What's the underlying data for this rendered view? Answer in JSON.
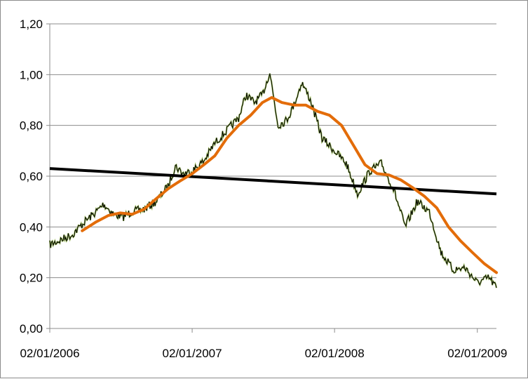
{
  "chart_data": {
    "type": "line",
    "title": "",
    "xlabel": "",
    "ylabel": "",
    "ylim": [
      0,
      1.2
    ],
    "xlim": [
      "2006-01-02",
      "2009-02-20"
    ],
    "grid": "horizontal",
    "legend": "none",
    "y_ticks": [
      "0,00",
      "0,20",
      "0,40",
      "0,60",
      "0,80",
      "1,00",
      "1,20"
    ],
    "y_tick_values": [
      0,
      0.2,
      0.4,
      0.6,
      0.8,
      1.0,
      1.2
    ],
    "x_ticks": [
      "02/01/2006",
      "02/01/2007",
      "02/01/2008",
      "02/01/2009"
    ],
    "x_tick_values": [
      "2006-01-02",
      "2007-01-02",
      "2008-01-02",
      "2009-01-02"
    ],
    "series": [
      {
        "color": "#000000",
        "marker_color": "#9bbb59",
        "style": "noisy",
        "points": [
          [
            "2006-01-02",
            0.33
          ],
          [
            "2006-02-01",
            0.35
          ],
          [
            "2006-03-01",
            0.37
          ],
          [
            "2006-04-01",
            0.42
          ],
          [
            "2006-05-01",
            0.46
          ],
          [
            "2006-05-20",
            0.49
          ],
          [
            "2006-06-15",
            0.45
          ],
          [
            "2006-07-10",
            0.44
          ],
          [
            "2006-08-01",
            0.46
          ],
          [
            "2006-09-01",
            0.47
          ],
          [
            "2006-10-01",
            0.5
          ],
          [
            "2006-11-01",
            0.56
          ],
          [
            "2006-11-20",
            0.64
          ],
          [
            "2006-12-10",
            0.61
          ],
          [
            "2007-01-02",
            0.62
          ],
          [
            "2007-02-01",
            0.66
          ],
          [
            "2007-03-01",
            0.73
          ],
          [
            "2007-04-01",
            0.78
          ],
          [
            "2007-05-01",
            0.83
          ],
          [
            "2007-05-20",
            0.92
          ],
          [
            "2007-06-10",
            0.89
          ],
          [
            "2007-07-01",
            0.92
          ],
          [
            "2007-07-20",
            1.01
          ],
          [
            "2007-08-10",
            0.8
          ],
          [
            "2007-09-01",
            0.82
          ],
          [
            "2007-09-20",
            0.88
          ],
          [
            "2007-10-10",
            0.97
          ],
          [
            "2007-11-01",
            0.9
          ],
          [
            "2007-12-01",
            0.75
          ],
          [
            "2008-01-02",
            0.7
          ],
          [
            "2008-02-01",
            0.65
          ],
          [
            "2008-03-01",
            0.53
          ],
          [
            "2008-04-01",
            0.62
          ],
          [
            "2008-05-01",
            0.65
          ],
          [
            "2008-06-01",
            0.55
          ],
          [
            "2008-07-01",
            0.4
          ],
          [
            "2008-08-01",
            0.5
          ],
          [
            "2008-09-01",
            0.46
          ],
          [
            "2008-10-01",
            0.3
          ],
          [
            "2008-11-01",
            0.23
          ],
          [
            "2008-12-01",
            0.24
          ],
          [
            "2009-01-02",
            0.18
          ],
          [
            "2009-02-01",
            0.2
          ],
          [
            "2009-02-20",
            0.16
          ]
        ]
      },
      {
        "color": "#e36c09",
        "style": "smooth",
        "points": [
          [
            "2006-03-26",
            0.385
          ],
          [
            "2006-05-01",
            0.42
          ],
          [
            "2006-06-01",
            0.445
          ],
          [
            "2006-07-01",
            0.455
          ],
          [
            "2006-08-01",
            0.45
          ],
          [
            "2006-09-01",
            0.47
          ],
          [
            "2006-10-01",
            0.51
          ],
          [
            "2006-11-01",
            0.55
          ],
          [
            "2006-12-01",
            0.58
          ],
          [
            "2007-01-02",
            0.61
          ],
          [
            "2007-02-01",
            0.645
          ],
          [
            "2007-03-01",
            0.68
          ],
          [
            "2007-04-01",
            0.75
          ],
          [
            "2007-05-01",
            0.8
          ],
          [
            "2007-06-01",
            0.84
          ],
          [
            "2007-07-01",
            0.89
          ],
          [
            "2007-07-25",
            0.91
          ],
          [
            "2007-08-20",
            0.89
          ],
          [
            "2007-09-20",
            0.88
          ],
          [
            "2007-10-20",
            0.88
          ],
          [
            "2007-11-20",
            0.855
          ],
          [
            "2007-12-20",
            0.84
          ],
          [
            "2008-01-20",
            0.8
          ],
          [
            "2008-02-20",
            0.72
          ],
          [
            "2008-03-20",
            0.645
          ],
          [
            "2008-04-20",
            0.61
          ],
          [
            "2008-05-20",
            0.605
          ],
          [
            "2008-06-20",
            0.585
          ],
          [
            "2008-07-20",
            0.555
          ],
          [
            "2008-08-20",
            0.52
          ],
          [
            "2008-09-20",
            0.475
          ],
          [
            "2008-10-20",
            0.4
          ],
          [
            "2008-11-20",
            0.345
          ],
          [
            "2008-12-20",
            0.3
          ],
          [
            "2009-01-20",
            0.255
          ],
          [
            "2009-02-20",
            0.22
          ]
        ]
      },
      {
        "color": "#000000",
        "style": "trend",
        "points": [
          [
            "2006-01-02",
            0.63
          ],
          [
            "2009-02-20",
            0.53
          ]
        ]
      }
    ]
  }
}
